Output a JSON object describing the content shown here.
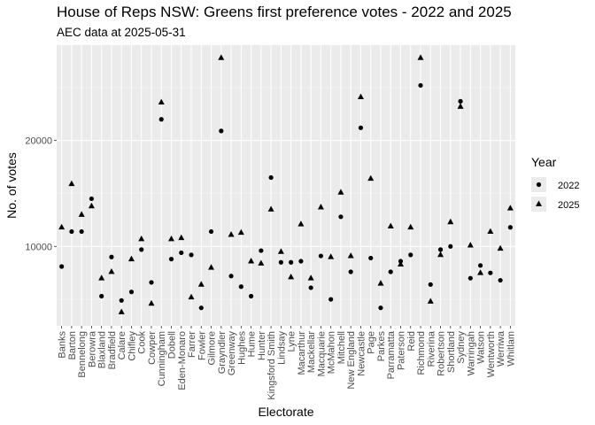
{
  "chart_data": {
    "type": "scatter",
    "title": "House of Reps NSW: Greens first preference votes - 2022 and 2025",
    "subtitle": "AEC data at 2025-05-31",
    "xlabel": "Electorate",
    "ylabel": "No. of votes",
    "y_ticks": [
      10000,
      20000
    ],
    "y_tick_labels": [
      "10000",
      "20000"
    ],
    "ylim": [
      2500,
      29000
    ],
    "grid": true,
    "legend_title": "Year",
    "legend_position": "right",
    "categories": [
      "Banks",
      "Barton",
      "Bennelong",
      "Berowra",
      "Blaxland",
      "Bradfield",
      "Calare",
      "Chifley",
      "Cook",
      "Cowper",
      "Cunningham",
      "Dobell",
      "Eden-Monaro",
      "Farrer",
      "Fowler",
      "Gilmore",
      "Grayndler",
      "Greenway",
      "Hughes",
      "Hume",
      "Hunter",
      "Kingsford Smith",
      "Lindsay",
      "Lyne",
      "Macarthur",
      "Mackellar",
      "Macquarie",
      "McMahon",
      "Mitchell",
      "New England",
      "Newcastle",
      "Page",
      "Parkes",
      "Parramatta",
      "Paterson",
      "Reid",
      "Richmond",
      "Riverina",
      "Robertson",
      "Shortland",
      "Sydney",
      "Warringah",
      "Watson",
      "Wentworth",
      "Werriwa",
      "Whitlam"
    ],
    "series": [
      {
        "name": "2022",
        "shape": "circle",
        "values": [
          8100,
          11400,
          11400,
          14500,
          5300,
          9000,
          4900,
          5700,
          9700,
          6600,
          22000,
          8800,
          9400,
          9200,
          4200,
          11400,
          20900,
          7200,
          6200,
          5300,
          9600,
          16500,
          8500,
          8500,
          8600,
          6100,
          9100,
          5000,
          12800,
          7600,
          21200,
          8900,
          4200,
          7600,
          8600,
          9200,
          25200,
          6400,
          9700,
          10000,
          23700,
          7000,
          8200,
          7500,
          6800,
          11800
        ]
      },
      {
        "name": "2025",
        "shape": "triangle",
        "values": [
          11800,
          15900,
          13000,
          13800,
          7000,
          7600,
          3800,
          8800,
          10700,
          4600,
          23600,
          10700,
          10800,
          5200,
          6400,
          8000,
          27800,
          11100,
          11300,
          8600,
          8400,
          13500,
          9500,
          7100,
          12100,
          7000,
          13700,
          9000,
          15100,
          9100,
          24100,
          16400,
          6500,
          11900,
          8300,
          11800,
          27800,
          4800,
          9200,
          12300,
          23200,
          10100,
          7500,
          11400,
          9800,
          13600
        ]
      }
    ]
  },
  "colors": {
    "panel_bg": "#ebebeb",
    "grid_major": "#ffffff",
    "grid_minor": "#f4f4f4",
    "axis_text": "#4d4d4d",
    "marker": "#000000"
  }
}
